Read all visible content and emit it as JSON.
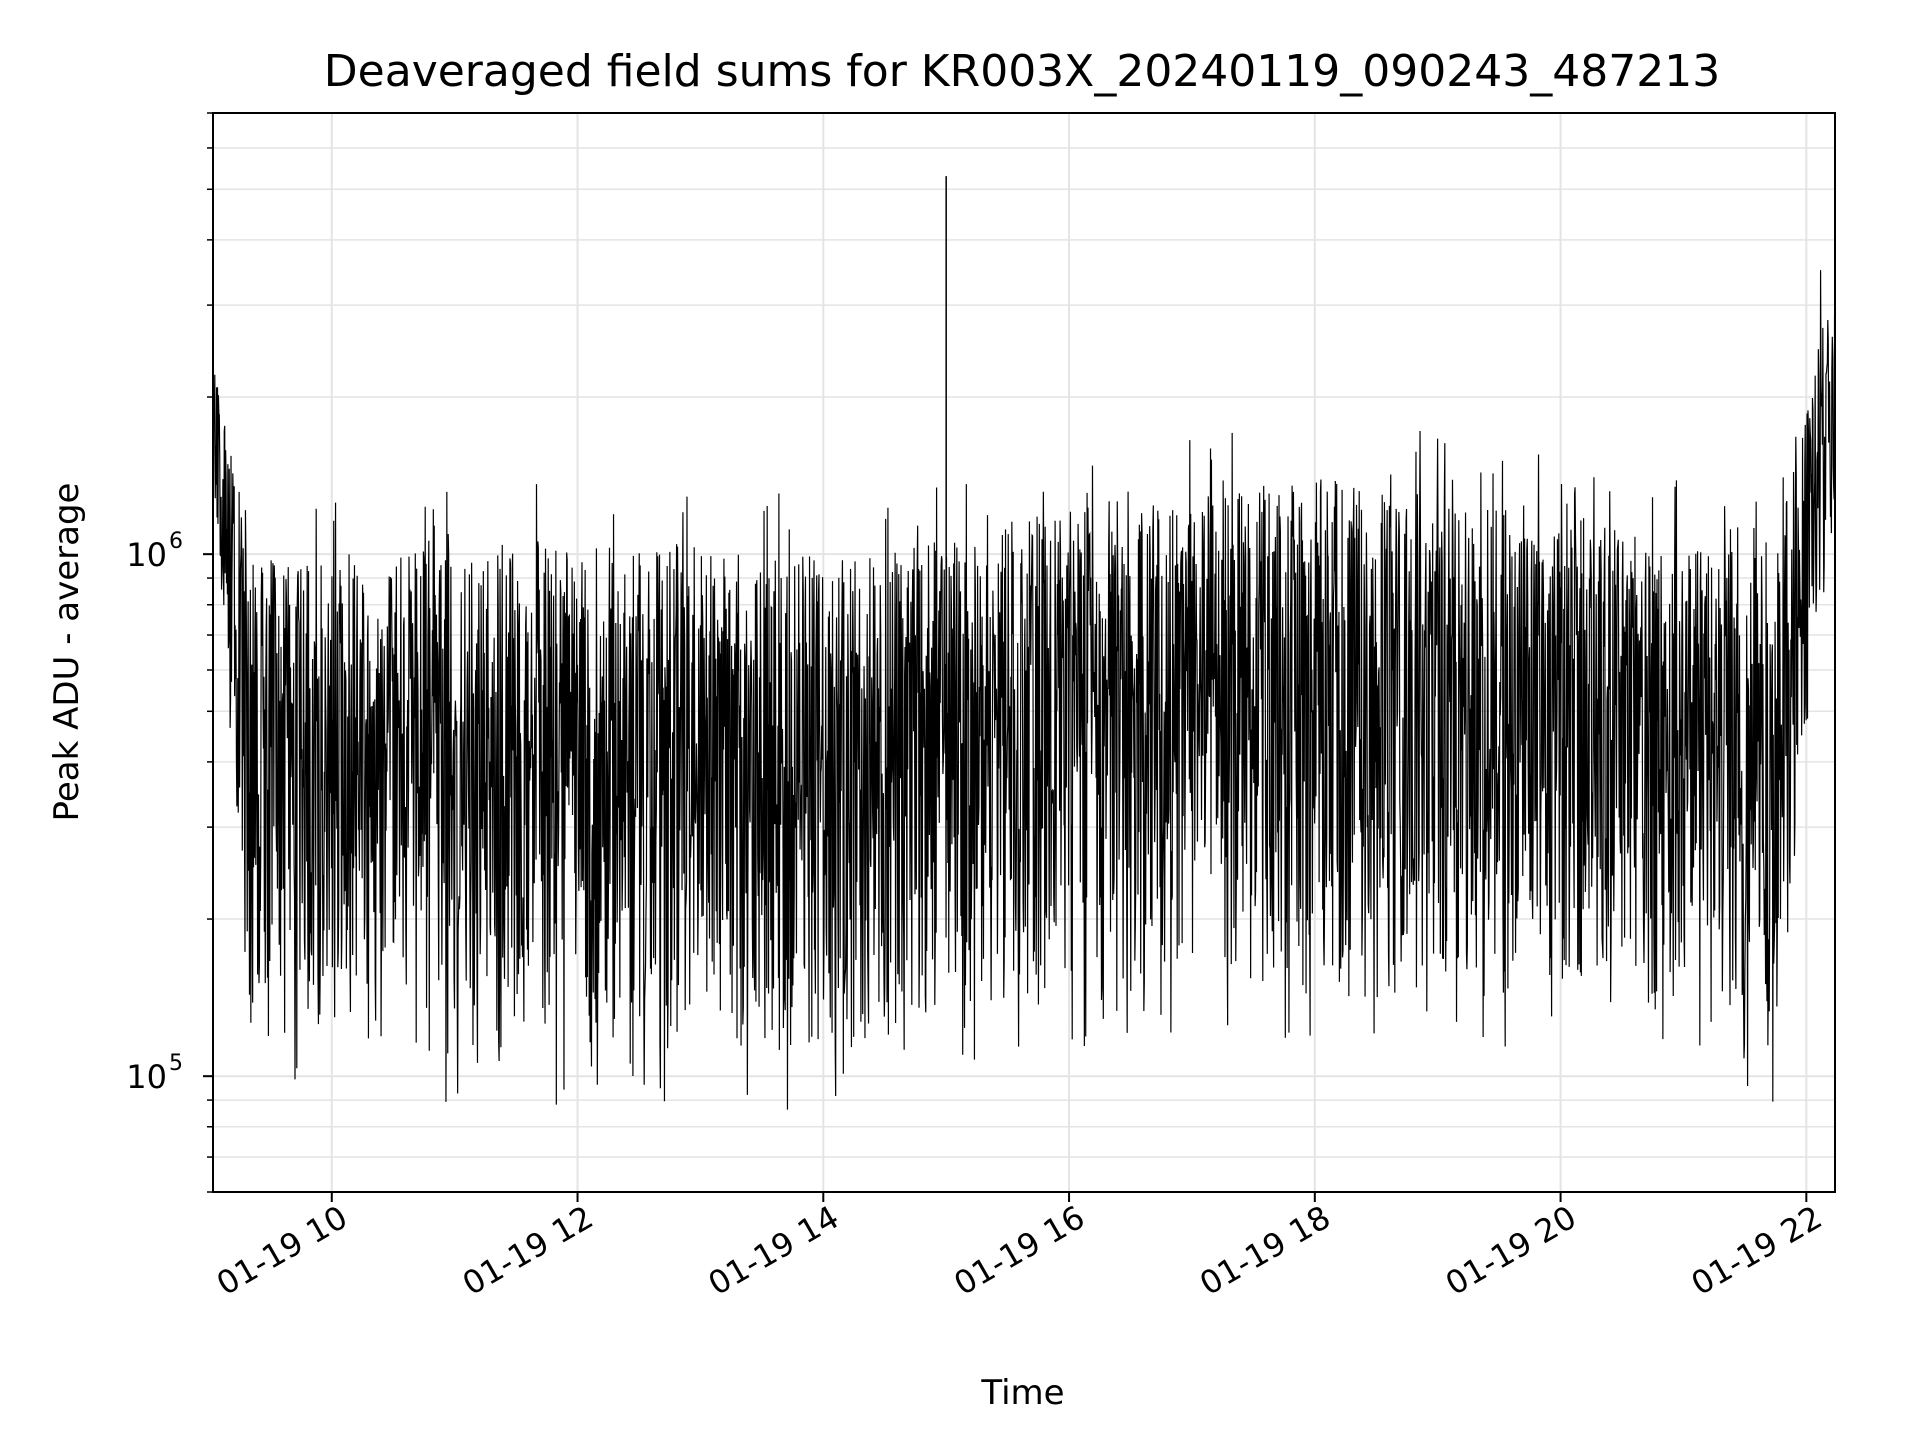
{
  "chart_data": {
    "type": "line",
    "title": "Deaveraged field sums for KR003X_20240119_090243_487213",
    "xlabel": "Time",
    "ylabel": "Peak ADU - average",
    "x_range": [
      "2024-01-19 09:02",
      "2024-01-19 22:14"
    ],
    "xticks": [
      {
        "label": "01-19 10",
        "time": "2024-01-19 10:00"
      },
      {
        "label": "01-19 12",
        "time": "2024-01-19 12:00"
      },
      {
        "label": "01-19 14",
        "time": "2024-01-19 14:00"
      },
      {
        "label": "01-19 16",
        "time": "2024-01-19 16:00"
      },
      {
        "label": "01-19 18",
        "time": "2024-01-19 18:00"
      },
      {
        "label": "01-19 20",
        "time": "2024-01-19 20:00"
      },
      {
        "label": "01-19 22",
        "time": "2024-01-19 22:00"
      }
    ],
    "y_scale": "log",
    "y_range": [
      60000,
      7000000
    ],
    "yticks": [
      {
        "mantissa": "10",
        "exponent": "5",
        "value": 100000
      },
      {
        "mantissa": "10",
        "exponent": "6",
        "value": 1000000
      }
    ],
    "grid": true,
    "line_color": "#000000",
    "series": [
      {
        "x": [
          "2024-01-19 09:05",
          "2024-01-19 09:20",
          "2024-01-19 10:00",
          "2024-01-19 11:00",
          "2024-01-19 12:00",
          "2024-01-19 13:00",
          "2024-01-19 14:00",
          "2024-01-19 15:00",
          "2024-01-19 16:00",
          "2024-01-19 17:00",
          "2024-01-19 18:00",
          "2024-01-19 19:00",
          "2024-01-19 20:00",
          "2024-01-19 21:00",
          "2024-01-19 21:45",
          "2024-01-19 22:10"
        ],
        "y_low": [
          900000,
          110000,
          120000,
          110000,
          115000,
          110000,
          105000,
          130000,
          140000,
          150000,
          140000,
          140000,
          140000,
          130000,
          110000,
          1050000
        ],
        "y_high": [
          2200000,
          1000000,
          950000,
          1050000,
          1050000,
          1000000,
          1000000,
          1050000,
          1250000,
          1300000,
          1400000,
          1300000,
          1150000,
          1050000,
          1000000,
          3000000
        ]
      }
    ],
    "peak": {
      "x": "2024-01-19 15:00",
      "y": 5300000
    }
  }
}
